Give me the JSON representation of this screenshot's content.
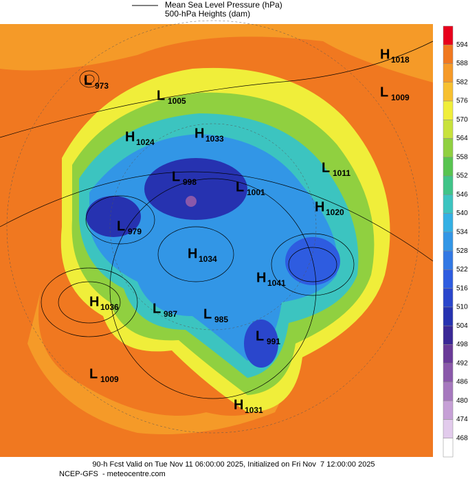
{
  "header": {
    "line1": "Mean Sea Level Pressure (hPa)",
    "line2": "500-hPa Heights (dam)"
  },
  "colorbar": {
    "ticks": [
      594,
      588,
      582,
      576,
      570,
      564,
      558,
      552,
      546,
      540,
      534,
      528,
      522,
      516,
      510,
      504,
      498,
      492,
      486,
      480,
      474,
      468
    ],
    "colors": [
      "#e8001c",
      "#f07820",
      "#f59a28",
      "#f7c030",
      "#f0ee3a",
      "#c8e23c",
      "#90d040",
      "#58c450",
      "#40c488",
      "#3cc4c0",
      "#34b0e4",
      "#3296e6",
      "#3278e4",
      "#2e5ce0",
      "#2a46cc",
      "#2632b0",
      "#3a2896",
      "#6a3a98",
      "#8a58aa",
      "#a678be",
      "#c6a0d6",
      "#e2cbec",
      "#ffffff"
    ]
  },
  "centers": [
    {
      "type": "H",
      "value": 1018
    },
    {
      "type": "L",
      "value": 1009
    },
    {
      "type": "L",
      "value": 973
    },
    {
      "type": "L",
      "value": 1005
    },
    {
      "type": "H",
      "value": 1024
    },
    {
      "type": "H",
      "value": 1033
    },
    {
      "type": "L",
      "value": 998
    },
    {
      "type": "L",
      "value": 1001
    },
    {
      "type": "L",
      "value": 1011
    },
    {
      "type": "H",
      "value": 1020
    },
    {
      "type": "L",
      "value": 979
    },
    {
      "type": "H",
      "value": 1034
    },
    {
      "type": "H",
      "value": 1041
    },
    {
      "type": "H",
      "value": 1036
    },
    {
      "type": "L",
      "value": 987
    },
    {
      "type": "L",
      "value": 985
    },
    {
      "type": "L",
      "value": 991
    },
    {
      "type": "L",
      "value": 1009
    },
    {
      "type": "H",
      "value": 1031
    }
  ],
  "footer": {
    "line1": "90-h Fcst Valid on Tue Nov 11 06:00:00 2025, Initialized on Fri Nov  7 12:00:00 2025",
    "line2": "NCEP-GFS  - meteocentre.com"
  }
}
